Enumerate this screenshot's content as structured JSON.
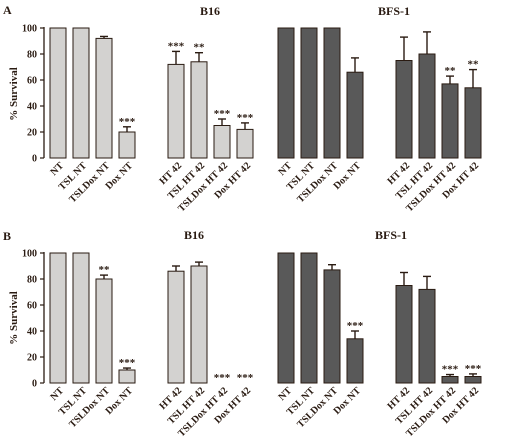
{
  "figure": {
    "ylabel": "% Survival",
    "yticks": [
      0,
      20,
      40,
      60,
      80,
      100
    ],
    "light_color": "#d3d2d0",
    "dark_color": "#595959",
    "text_color": "#2a1b12"
  },
  "chart_data": [
    {
      "panel": "A",
      "type": "bar",
      "ylabel": "% Survival",
      "ylim": [
        0,
        100
      ],
      "groups": [
        {
          "title": "B16",
          "color": "#d3d2d0",
          "bars": [
            {
              "label": "NT",
              "value": 100,
              "err": 0,
              "sig": ""
            },
            {
              "label": "TSL NT",
              "value": 100,
              "err": 0,
              "sig": ""
            },
            {
              "label": "TSLDox NT",
              "value": 92,
              "err": 1.5,
              "sig": ""
            },
            {
              "label": "Dox NT",
              "value": 20,
              "err": 4,
              "sig": "***"
            },
            {
              "label": "HT 42",
              "value": 72,
              "err": 10,
              "sig": "***"
            },
            {
              "label": "TSL HT 42",
              "value": 74,
              "err": 7,
              "sig": "**"
            },
            {
              "label": "TSLDox HT 42",
              "value": 25,
              "err": 5,
              "sig": "***"
            },
            {
              "label": "Dox HT 42",
              "value": 22,
              "err": 5,
              "sig": "***"
            }
          ]
        },
        {
          "title": "BFS-1",
          "color": "#595959",
          "bars": [
            {
              "label": "NT",
              "value": 100,
              "err": 0,
              "sig": ""
            },
            {
              "label": "TSL NT",
              "value": 100,
              "err": 0,
              "sig": ""
            },
            {
              "label": "TSLDox NT",
              "value": 100,
              "err": 0,
              "sig": ""
            },
            {
              "label": "Dox NT",
              "value": 66,
              "err": 11,
              "sig": ""
            },
            {
              "label": "HT 42",
              "value": 75,
              "err": 18,
              "sig": ""
            },
            {
              "label": "TSL HT 42",
              "value": 80,
              "err": 17,
              "sig": ""
            },
            {
              "label": "TSLDox HT 42",
              "value": 57,
              "err": 6,
              "sig": "**"
            },
            {
              "label": "Dox HT 42",
              "value": 54,
              "err": 14,
              "sig": "**"
            }
          ]
        }
      ]
    },
    {
      "panel": "B",
      "type": "bar",
      "ylabel": "% Survival",
      "ylim": [
        0,
        100
      ],
      "groups": [
        {
          "title": "B16",
          "color": "#d3d2d0",
          "bars": [
            {
              "label": "NT",
              "value": 100,
              "err": 0,
              "sig": ""
            },
            {
              "label": "TSL NT",
              "value": 100,
              "err": 0,
              "sig": ""
            },
            {
              "label": "TSLDox NT",
              "value": 80,
              "err": 3,
              "sig": "**"
            },
            {
              "label": "Dox NT",
              "value": 10,
              "err": 1.5,
              "sig": "***"
            },
            {
              "label": "HT 42",
              "value": 86,
              "err": 4,
              "sig": ""
            },
            {
              "label": "TSL HT 42",
              "value": 90,
              "err": 3,
              "sig": ""
            },
            {
              "label": "TSLDox HT 42",
              "value": 0,
              "err": 0,
              "sig": "***"
            },
            {
              "label": "Dox HT 42",
              "value": 0,
              "err": 0,
              "sig": "***"
            }
          ]
        },
        {
          "title": "BFS-1",
          "color": "#595959",
          "bars": [
            {
              "label": "NT",
              "value": 100,
              "err": 0,
              "sig": ""
            },
            {
              "label": "TSL NT",
              "value": 100,
              "err": 0,
              "sig": ""
            },
            {
              "label": "TSLDox NT",
              "value": 87,
              "err": 4,
              "sig": ""
            },
            {
              "label": "Dox NT",
              "value": 34,
              "err": 6,
              "sig": "***"
            },
            {
              "label": "HT 42",
              "value": 75,
              "err": 10,
              "sig": ""
            },
            {
              "label": "TSL HT 42",
              "value": 72,
              "err": 10,
              "sig": ""
            },
            {
              "label": "TSLDox HT 42",
              "value": 5,
              "err": 1.5,
              "sig": "***"
            },
            {
              "label": "Dox HT 42",
              "value": 5,
              "err": 2,
              "sig": "***"
            }
          ]
        }
      ]
    }
  ]
}
